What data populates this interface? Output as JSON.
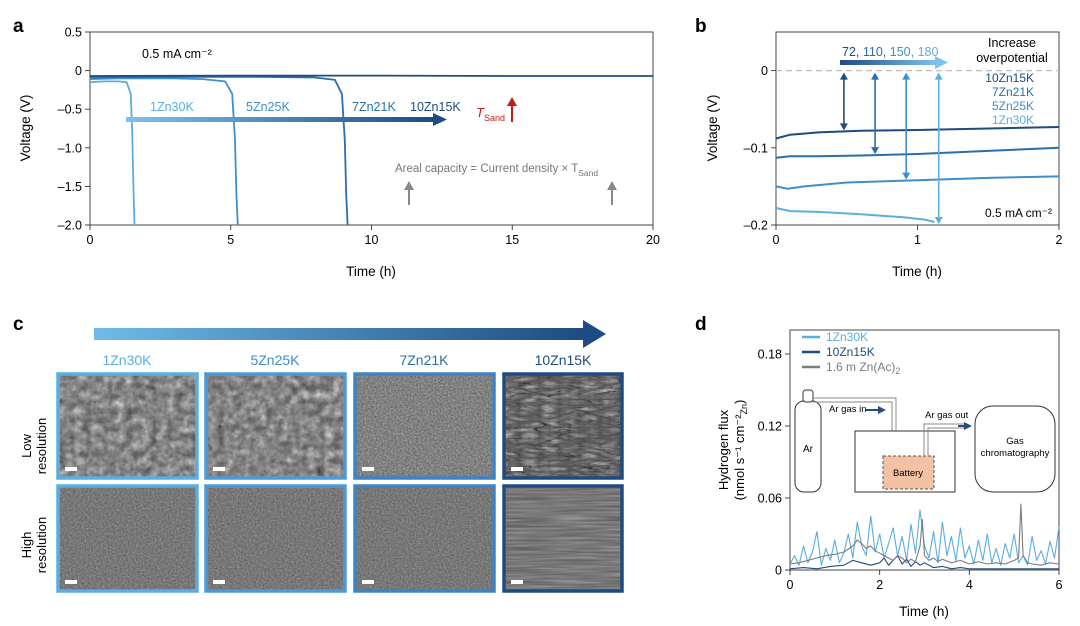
{
  "colors": {
    "s1": "#5aaee0",
    "s2": "#3e8fcc",
    "s3": "#2c6ea8",
    "s4": "#1e4b82",
    "gray": "#7c7c7c",
    "sand": "#c41a1a",
    "battery": "#f3c2a4"
  },
  "panels": {
    "a": "a",
    "b": "b",
    "c": "c",
    "d": "d"
  },
  "chart_data": [
    {
      "id": "a",
      "type": "line",
      "xlabel": "Time (h)",
      "ylabel": "Voltage (V)",
      "xlim": [
        0,
        20
      ],
      "ylim": [
        -2.0,
        0.5
      ],
      "xticks": [
        0,
        5,
        10,
        15,
        20
      ],
      "yticks": [
        0.5,
        0,
        -0.5,
        -1.0,
        -1.5,
        -2.0
      ],
      "ytick_labels": [
        "0.5",
        "0",
        "–0.5",
        "–1.0",
        "–1.5",
        "–2.0"
      ],
      "grid": false,
      "series": [
        {
          "name": "1Zn30K",
          "color_key": "s1",
          "x": [
            0,
            0.5,
            1.0,
            1.3,
            1.45,
            1.5,
            1.55,
            1.58
          ],
          "y": [
            -0.15,
            -0.14,
            -0.14,
            -0.15,
            -0.3,
            -0.8,
            -1.6,
            -2.0
          ]
        },
        {
          "name": "5Zn25K",
          "color_key": "s2",
          "x": [
            0,
            1,
            2,
            3,
            4,
            4.8,
            5.05,
            5.15,
            5.2,
            5.25
          ],
          "y": [
            -0.11,
            -0.1,
            -0.1,
            -0.1,
            -0.11,
            -0.14,
            -0.3,
            -0.9,
            -1.6,
            -2.0
          ]
        },
        {
          "name": "7Zn21K",
          "color_key": "s3",
          "x": [
            0,
            2,
            4,
            6,
            8,
            8.7,
            8.95,
            9.05,
            9.1,
            9.15
          ],
          "y": [
            -0.09,
            -0.08,
            -0.08,
            -0.08,
            -0.09,
            -0.12,
            -0.3,
            -0.9,
            -1.6,
            -2.0
          ]
        },
        {
          "name": "10Zn15K",
          "color_key": "s4",
          "x": [
            0,
            5,
            10,
            15,
            20
          ],
          "y": [
            -0.07,
            -0.065,
            -0.065,
            -0.07,
            -0.07
          ]
        }
      ],
      "annotations": {
        "current": "0.5 mA cm⁻²",
        "labels": [
          "1Zn30K",
          "5Zn25K",
          "7Zn21K",
          "10Zn15K"
        ],
        "tsand": "T",
        "tsand_sub": "Sand",
        "areal": "Areal capacity = Current density × T",
        "areal_sub": "Sand"
      }
    },
    {
      "id": "b",
      "type": "line",
      "xlabel": "Time (h)",
      "ylabel": "Voltage (V)",
      "xlim": [
        0,
        2
      ],
      "ylim": [
        -0.2,
        0.05
      ],
      "xticks": [
        0,
        1,
        2
      ],
      "yticks": [
        0,
        -0.1,
        -0.2
      ],
      "ytick_labels": [
        "0",
        "–0.1",
        "–0.2"
      ],
      "grid": false,
      "series": [
        {
          "name": "10Zn15K",
          "color_key": "s4",
          "x": [
            0,
            0.1,
            0.3,
            0.6,
            1.0,
            1.5,
            2.0
          ],
          "y": [
            -0.088,
            -0.083,
            -0.08,
            -0.078,
            -0.077,
            -0.075,
            -0.073
          ]
        },
        {
          "name": "7Zn21K",
          "color_key": "s3",
          "x": [
            0,
            0.1,
            0.3,
            0.6,
            1.0,
            1.5,
            2.0
          ],
          "y": [
            -0.113,
            -0.111,
            -0.111,
            -0.11,
            -0.108,
            -0.104,
            -0.1
          ]
        },
        {
          "name": "5Zn25K",
          "color_key": "s2",
          "x": [
            0,
            0.08,
            0.2,
            0.5,
            1.0,
            1.5,
            2.0
          ],
          "y": [
            -0.15,
            -0.153,
            -0.15,
            -0.145,
            -0.142,
            -0.139,
            -0.137
          ]
        },
        {
          "name": "1Zn30K",
          "color_key": "s1",
          "x": [
            0,
            0.1,
            0.3,
            0.6,
            0.9,
            1.05,
            1.12
          ],
          "y": [
            -0.178,
            -0.182,
            -0.183,
            -0.186,
            -0.19,
            -0.193,
            -0.196
          ]
        }
      ],
      "overpotential_values": [
        "72",
        "110",
        "150",
        "180"
      ],
      "overpotential_times": [
        0.48,
        0.7,
        0.92,
        1.15
      ],
      "annotations": {
        "title": "Increase overpotential",
        "title_line1": "Increase",
        "title_line2": "overpotential",
        "current": "0.5 mA cm⁻²",
        "sep1": ", ",
        "sep2": ", ",
        "sep3": ", "
      },
      "legend_order": [
        "10Zn15K",
        "7Zn21K",
        "5Zn25K",
        "1Zn30K"
      ]
    },
    {
      "id": "d",
      "type": "line",
      "xlabel": "Time (h)",
      "ylabel_line1": "Hydrogen flux",
      "ylabel_line2": "(nmol s⁻¹ cm⁻²",
      "ylabel_sub": "Zn",
      "ylabel_end": ")",
      "xlim": [
        0,
        6
      ],
      "ylim": [
        0,
        0.2
      ],
      "xticks": [
        0,
        2,
        4,
        6
      ],
      "yticks": [
        0,
        0.06,
        0.12,
        0.18
      ],
      "ytick_labels": [
        "0",
        "0.06",
        "0.12",
        "0.18"
      ],
      "grid": false,
      "legend": {
        "entries": [
          "1Zn30K",
          "10Zn15K",
          "1.6 m Zn(Ac)"
        ],
        "entry3_sub": "2",
        "position": "top-left"
      },
      "series": [
        {
          "name": "1Zn30K",
          "color_key": "s1",
          "x": [
            0.0,
            0.1,
            0.2,
            0.3,
            0.4,
            0.5,
            0.6,
            0.7,
            0.8,
            0.9,
            1.0,
            1.1,
            1.2,
            1.3,
            1.4,
            1.5,
            1.6,
            1.7,
            1.8,
            1.9,
            2.0,
            2.1,
            2.2,
            2.3,
            2.4,
            2.5,
            2.6,
            2.7,
            2.8,
            2.9,
            3.0,
            3.1,
            3.2,
            3.3,
            3.4,
            3.5,
            3.6,
            3.7,
            3.8,
            3.9,
            4.0,
            4.1,
            4.2,
            4.3,
            4.4,
            4.5,
            4.6,
            4.7,
            4.8,
            4.9,
            5.0,
            5.1,
            5.2,
            5.3,
            5.4,
            5.5,
            5.6,
            5.7,
            5.8,
            5.9,
            6.0
          ],
          "y": [
            0.005,
            0.012,
            0.004,
            0.02,
            0.006,
            0.015,
            0.032,
            0.004,
            0.018,
            0.008,
            0.025,
            0.006,
            0.014,
            0.03,
            0.01,
            0.04,
            0.02,
            0.012,
            0.045,
            0.015,
            0.03,
            0.01,
            0.022,
            0.035,
            0.012,
            0.028,
            0.008,
            0.038,
            0.014,
            0.05,
            0.02,
            0.01,
            0.032,
            0.006,
            0.04,
            0.012,
            0.028,
            0.008,
            0.035,
            0.01,
            0.02,
            0.005,
            0.025,
            0.008,
            0.03,
            0.006,
            0.018,
            0.004,
            0.022,
            0.01,
            0.03,
            0.006,
            0.012,
            0.004,
            0.028,
            0.008,
            0.016,
            0.005,
            0.024,
            0.01,
            0.036
          ]
        },
        {
          "name": "10Zn15K",
          "color_key": "s4",
          "x": [
            0.0,
            0.3,
            0.6,
            0.9,
            1.2,
            1.4,
            1.6,
            1.8,
            2.0,
            2.1,
            2.2,
            2.3,
            2.4,
            2.5,
            2.6,
            2.7,
            2.8,
            2.9,
            3.0,
            3.2,
            3.4,
            3.6,
            3.8,
            4.0,
            4.5,
            5.0,
            5.5,
            6.0
          ],
          "y": [
            0.001,
            0.002,
            0.001,
            0.003,
            0.004,
            0.008,
            0.006,
            0.004,
            0.006,
            0.01,
            0.004,
            0.008,
            0.012,
            0.005,
            0.009,
            0.003,
            0.007,
            0.004,
            0.006,
            0.002,
            0.003,
            0.001,
            0.002,
            0.001,
            0.001,
            0.001,
            0.001,
            0.001
          ]
        },
        {
          "name": "1.6 m Zn(Ac)2",
          "color_key": "gray",
          "x": [
            0.0,
            0.2,
            0.4,
            0.6,
            0.8,
            1.0,
            1.2,
            1.4,
            1.5,
            1.6,
            1.7,
            1.8,
            1.9,
            2.0,
            2.1,
            2.2,
            2.3,
            2.4,
            2.5,
            2.6,
            2.7,
            2.8,
            2.9,
            2.95,
            3.0,
            3.1,
            3.2,
            3.3,
            3.4,
            3.6,
            3.8,
            4.0,
            4.2,
            4.4,
            4.6,
            4.8,
            5.0,
            5.1,
            5.15,
            5.2,
            5.3,
            5.4,
            5.6,
            5.8,
            6.0
          ],
          "y": [
            0.005,
            0.006,
            0.008,
            0.01,
            0.012,
            0.013,
            0.015,
            0.02,
            0.025,
            0.022,
            0.018,
            0.02,
            0.016,
            0.014,
            0.012,
            0.01,
            0.008,
            0.012,
            0.01,
            0.006,
            0.009,
            0.007,
            0.02,
            0.042,
            0.012,
            0.008,
            0.01,
            0.007,
            0.009,
            0.006,
            0.008,
            0.005,
            0.007,
            0.005,
            0.006,
            0.005,
            0.008,
            0.01,
            0.055,
            0.012,
            0.006,
            0.005,
            0.004,
            0.006,
            0.005
          ]
        }
      ],
      "inset": {
        "ar": "Ar",
        "ar_gas_in": "Ar gas in",
        "ar_gas_out": "Ar gas out",
        "battery": "Battery",
        "gc_line1": "Gas",
        "gc_line2": "chromatography"
      }
    }
  ],
  "panel_c": {
    "samples": [
      "1Zn30K",
      "5Zn25K",
      "7Zn21K",
      "10Zn15K"
    ],
    "rows": [
      {
        "line1": "Low",
        "line2": "resolution"
      },
      {
        "line1": "High",
        "line2": "resolution"
      }
    ]
  }
}
